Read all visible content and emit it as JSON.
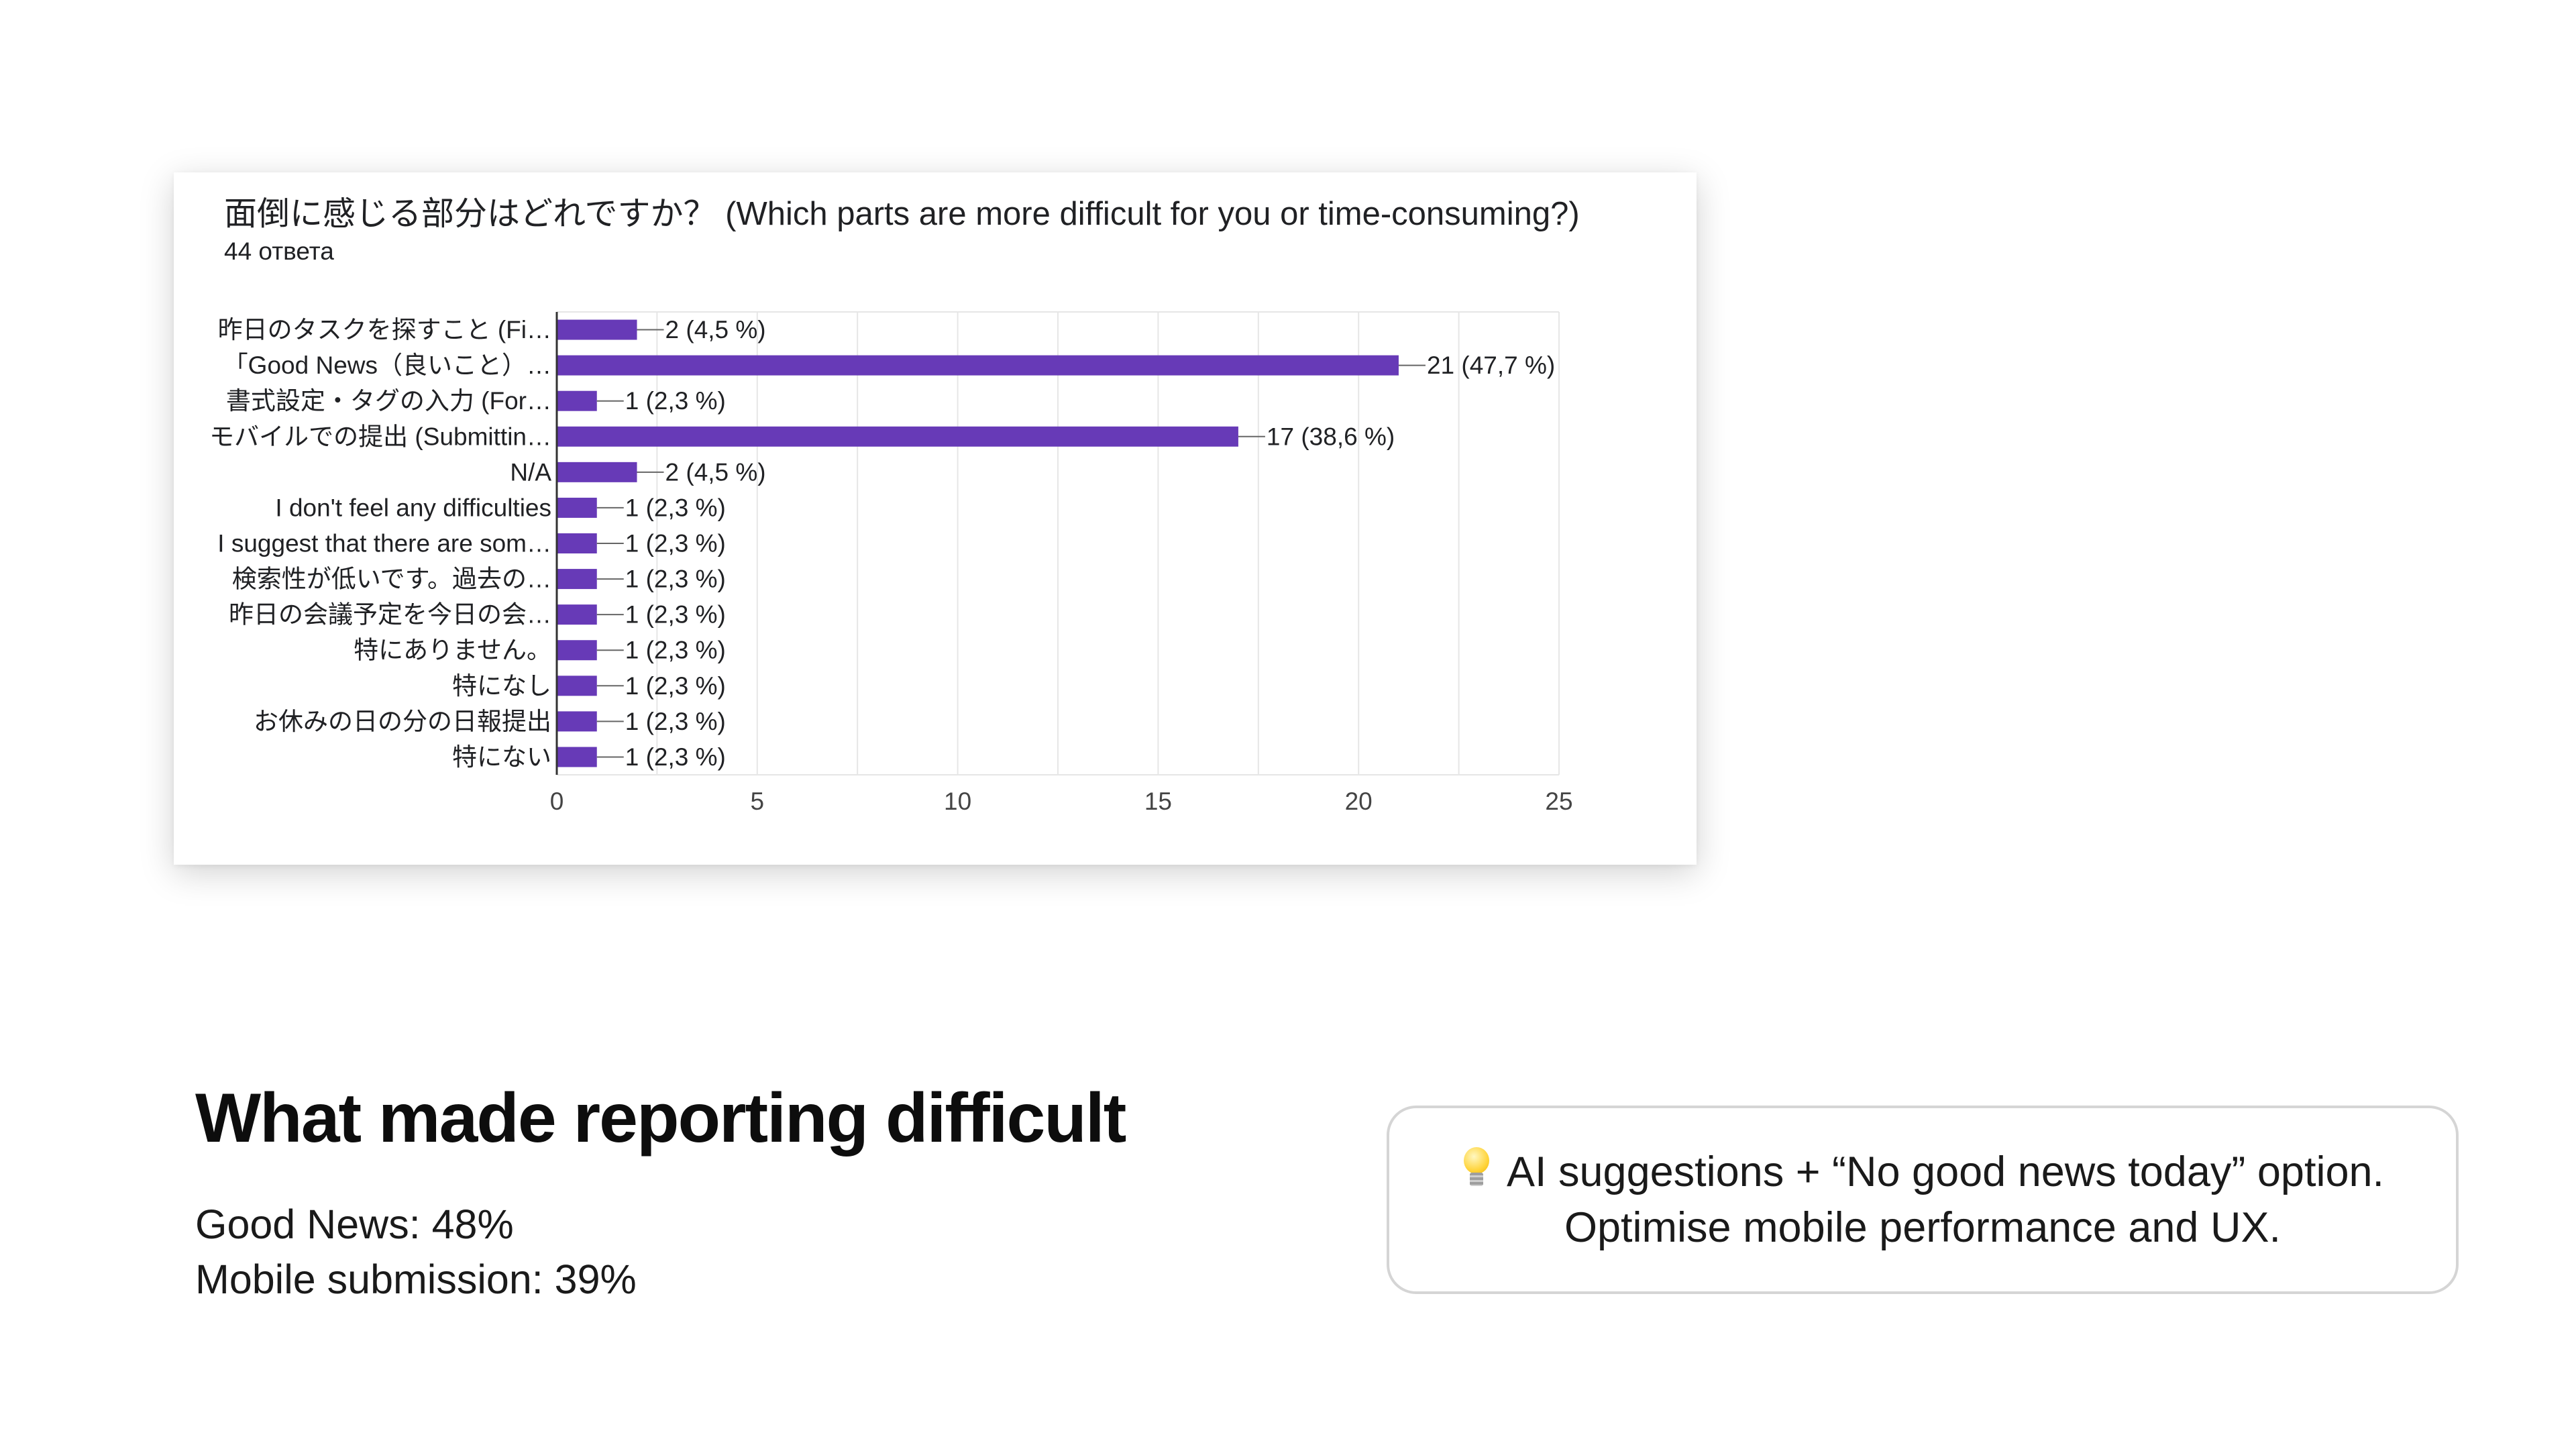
{
  "chart_data": {
    "type": "bar",
    "orientation": "horizontal",
    "title": "面倒に感じる部分はどれですか？ (Which parts are more difficult for you or time-consuming?)",
    "subtitle": "44 ответа",
    "categories": [
      "昨日のタスクを探すこと (Fi…",
      "「Good News（良いこと）…",
      "書式設定・タグの入力 (For…",
      "モバイルでの提出 (Submittin…",
      "N/A",
      "I don't feel any difficulties",
      "I suggest that there are som…",
      "検索性が低いです。過去の…",
      "昨日の会議予定を今日の会…",
      "特にありません。",
      "特になし",
      "お休みの日の分の日報提出",
      "特にない"
    ],
    "values": [
      2,
      21,
      1,
      17,
      2,
      1,
      1,
      1,
      1,
      1,
      1,
      1,
      1
    ],
    "data_labels": [
      "2 (4,5 %)",
      "21 (47,7 %)",
      "1 (2,3 %)",
      "17 (38,6 %)",
      "2 (4,5 %)",
      "1 (2,3 %)",
      "1 (2,3 %)",
      "1 (2,3 %)",
      "1 (2,3 %)",
      "1 (2,3 %)",
      "1 (2,3 %)",
      "1 (2,3 %)",
      "1 (2,3 %)"
    ],
    "xlim": [
      0,
      25
    ],
    "xticks": [
      0,
      5,
      10,
      15,
      20,
      25
    ],
    "grid": true,
    "bar_color": "#673ab7"
  },
  "summary": {
    "heading": "What made reporting difficult",
    "stats": [
      "Good News: 48%",
      "Mobile submission: 39%"
    ]
  },
  "callout": {
    "icon": "lightbulb-icon",
    "line1": "AI suggestions + “No good news today” option.",
    "line2": "Optimise mobile performance and UX."
  }
}
